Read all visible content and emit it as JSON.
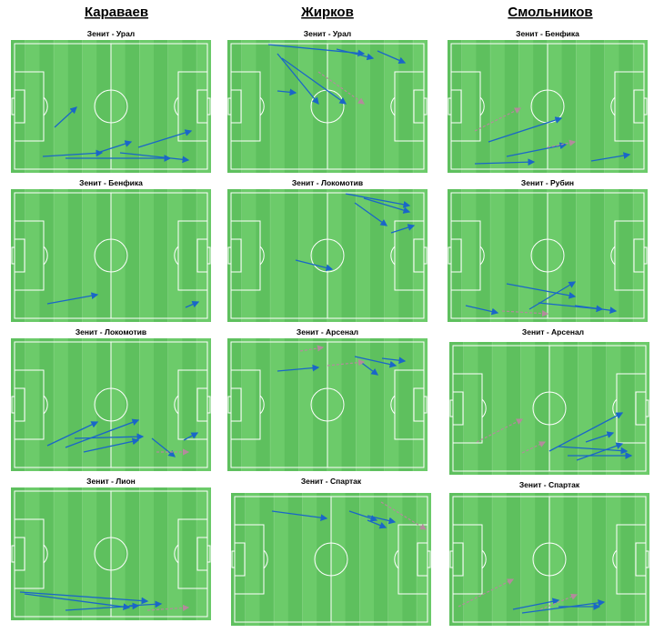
{
  "columns": [
    {
      "header": "Караваев",
      "matches": [
        "Зенит - Урал",
        "Зенит - Бенфика",
        "Зенит - Локомотив",
        "Зенит - Лион"
      ]
    },
    {
      "header": "Жирков",
      "matches": [
        "Зенит - Урал",
        "Зенит - Локомотив",
        "Зенит - Арсенал",
        "Зенит - Спартак"
      ]
    },
    {
      "header": "Смольников",
      "matches": [
        "Зенит - Бенфика",
        "Зенит - Рубин",
        "Зенит - Арсенал",
        "Зенит - Спартак"
      ]
    }
  ]
}
